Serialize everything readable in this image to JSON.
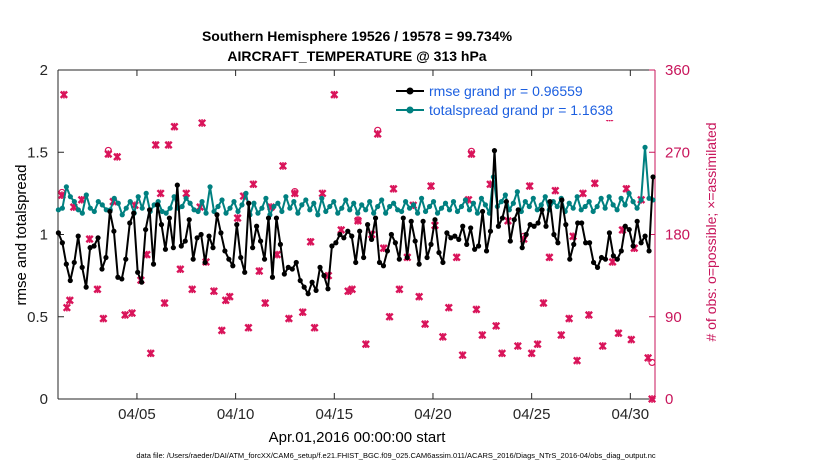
{
  "chart_data": {
    "type": "line",
    "title": "Southern Hemisphere 19526 / 19578 = 99.734%",
    "subtitle": "AIRCRAFT_TEMPERATURE @ 313 hPa",
    "xlabel": "Apr.01,2016 00:00:00 start",
    "ylabel": "rmse and totalspread",
    "ylabel_right": "# of obs: o=possible; ×=assimilated",
    "footnote": "data file: /Users/raeder/DAI/ATM_forcXX/CAM6_setup/f.e21.FHIST_BGC.f09_025.CAM6assim.011/ACARS_2016/Diags_NTrS_2016-04/obs_diag_output.nc",
    "xlim": [
      1.0,
      31.25
    ],
    "ylim": [
      0,
      2
    ],
    "ylim_right": [
      0,
      360
    ],
    "x_ticks": [
      5,
      10,
      15,
      20,
      25,
      30
    ],
    "x_tick_labels": [
      "04/05",
      "04/10",
      "04/15",
      "04/20",
      "04/25",
      "04/30"
    ],
    "y_ticks": [
      0,
      0.5,
      1,
      1.5,
      2
    ],
    "y_tick_labels": [
      "0",
      "0.5",
      "1",
      "1.5",
      "2"
    ],
    "y_right_ticks": [
      0,
      90,
      180,
      270,
      360
    ],
    "y_right_tick_labels": [
      "0",
      "90",
      "180",
      "270",
      "360"
    ],
    "legend_position": "top-right",
    "colors": {
      "rmse": "#000000",
      "spread": "#008080",
      "obs": "#d9145a",
      "axis": "#262626",
      "right_axis": "#c8155b",
      "legend_text": "#1c5fe0"
    },
    "series": [
      {
        "name": "rmse grand pr = 0.96559",
        "axis": "left",
        "values": [
          1.01,
          0.95,
          0.82,
          0.72,
          0.83,
          0.99,
          0.8,
          0.68,
          0.92,
          0.93,
          0.98,
          0.79,
          0.86,
          1.14,
          1.02,
          0.74,
          0.73,
          0.85,
          1.07,
          1.13,
          0.77,
          0.71,
          1.03,
          1.15,
          0.82,
          1.18,
          1.06,
          0.91,
          1.1,
          0.92,
          1.3,
          0.93,
          0.96,
          1.09,
          0.85,
          0.98,
          1.0,
          0.83,
          0.99,
          0.92,
          1.12,
          1.01,
          0.9,
          0.85,
          0.81,
          1.06,
          0.86,
          0.77,
          1.19,
          0.92,
          1.05,
          0.96,
          0.85,
          1.1,
          0.74,
          1.1,
          0.94,
          0.76,
          0.8,
          0.79,
          0.83,
          0.72,
          0.68,
          0.64,
          0.71,
          0.66,
          0.8,
          0.75,
          0.67,
          0.93,
          0.95,
          1.0,
          0.98,
          1.02,
          0.99,
          0.83,
          1.02,
          0.86,
          1.06,
          0.97,
          1.1,
          0.83,
          0.81,
          0.9,
          1.0,
          0.95,
          0.85,
          1.1,
          0.86,
          1.08,
          0.96,
          0.82,
          1.08,
          0.86,
          0.94,
          1.09,
          0.89,
          0.83,
          1.01,
          0.98,
          0.99,
          0.97,
          1.05,
          0.94,
          1.04,
          0.91,
          0.93,
          1.14,
          0.9,
          1.02,
          1.51,
          1.05,
          1.1,
          1.2,
          0.96,
          1.09,
          1.15,
          0.92,
          1.0,
          1.06,
          1.05,
          1.07,
          1.15,
          1.05,
          1.2,
          1.0,
          0.95,
          1.21,
          1.06,
          0.85,
          0.94,
          1.07,
          1.07,
          0.95,
          0.95,
          0.83,
          0.8,
          0.86,
          0.85,
          1.01,
          0.87,
          0.85,
          0.9,
          1.05,
          1.03,
          0.93,
          1.08,
          0.95,
          0.99,
          0.9,
          1.35
        ]
      },
      {
        "name": "totalspread grand pr = 1.1638",
        "axis": "left",
        "values": [
          1.15,
          1.16,
          1.29,
          1.23,
          1.2,
          1.15,
          1.13,
          1.24,
          1.16,
          1.14,
          1.2,
          1.18,
          1.15,
          1.15,
          1.22,
          1.19,
          1.12,
          1.16,
          1.2,
          1.13,
          1.23,
          1.16,
          1.25,
          1.14,
          1.18,
          1.2,
          1.14,
          1.13,
          1.16,
          1.23,
          1.16,
          1.17,
          1.22,
          1.19,
          1.15,
          1.14,
          1.2,
          1.13,
          1.29,
          1.14,
          1.17,
          1.21,
          1.13,
          1.16,
          1.2,
          1.14,
          1.18,
          1.25,
          1.12,
          1.19,
          1.13,
          1.16,
          1.22,
          1.12,
          1.17,
          1.19,
          1.14,
          1.23,
          1.16,
          1.2,
          1.13,
          1.18,
          1.21,
          1.15,
          1.19,
          1.12,
          1.22,
          1.14,
          1.17,
          1.2,
          1.13,
          1.16,
          1.21,
          1.15,
          1.19,
          1.13,
          1.18,
          1.15,
          1.2,
          1.13,
          1.17,
          1.21,
          1.13,
          1.17,
          1.19,
          1.15,
          1.14,
          1.2,
          1.16,
          1.18,
          1.13,
          1.22,
          1.14,
          1.17,
          1.2,
          1.13,
          1.16,
          1.19,
          1.15,
          1.2,
          1.14,
          1.17,
          1.21,
          1.15,
          1.19,
          1.13,
          1.22,
          1.18,
          1.13,
          1.35,
          1.17,
          1.2,
          1.24,
          1.15,
          1.19,
          1.26,
          1.14,
          1.2,
          1.17,
          1.22,
          1.15,
          1.18,
          1.23,
          1.15,
          1.2,
          1.17,
          1.22,
          1.14,
          1.19,
          1.16,
          1.23,
          1.15,
          1.17,
          1.2,
          1.14,
          1.17,
          1.22,
          1.16,
          1.23,
          1.18,
          1.15,
          1.22,
          1.18,
          1.25,
          1.2,
          1.16,
          1.21,
          1.53,
          1.22,
          1.21
        ]
      },
      {
        "name": "# of obs assimilated",
        "axis": "right",
        "points": [
          [
            1.2,
            223
          ],
          [
            1.3,
            333
          ],
          [
            1.45,
            100
          ],
          [
            1.6,
            108
          ],
          [
            1.8,
            210
          ],
          [
            2.2,
            218
          ],
          [
            2.6,
            175
          ],
          [
            3.0,
            120
          ],
          [
            3.3,
            88
          ],
          [
            3.55,
            268
          ],
          [
            3.8,
            216
          ],
          [
            4.0,
            265
          ],
          [
            4.4,
            92
          ],
          [
            4.75,
            94
          ],
          [
            4.9,
            212
          ],
          [
            5.2,
            130
          ],
          [
            5.5,
            158
          ],
          [
            5.7,
            50
          ],
          [
            5.95,
            278
          ],
          [
            6.2,
            225
          ],
          [
            6.4,
            105
          ],
          [
            6.6,
            278
          ],
          [
            6.9,
            298
          ],
          [
            7.2,
            142
          ],
          [
            7.5,
            225
          ],
          [
            7.8,
            120
          ],
          [
            8.2,
            210
          ],
          [
            8.3,
            302
          ],
          [
            8.5,
            150
          ],
          [
            8.9,
            118
          ],
          [
            9.3,
            75
          ],
          [
            9.5,
            108
          ],
          [
            9.7,
            112
          ],
          [
            10.1,
            198
          ],
          [
            10.4,
            222
          ],
          [
            10.65,
            78
          ],
          [
            10.9,
            235
          ],
          [
            11.2,
            140
          ],
          [
            11.5,
            105
          ],
          [
            11.8,
            210
          ],
          [
            12.1,
            158
          ],
          [
            12.4,
            255
          ],
          [
            12.7,
            88
          ],
          [
            13.0,
            225
          ],
          [
            13.4,
            95
          ],
          [
            13.8,
            172
          ],
          [
            14.0,
            78
          ],
          [
            14.4,
            225
          ],
          [
            14.7,
            135
          ],
          [
            15.0,
            333
          ],
          [
            15.35,
            185
          ],
          [
            15.7,
            118
          ],
          [
            15.9,
            120
          ],
          [
            16.2,
            195
          ],
          [
            16.6,
            60
          ],
          [
            16.9,
            180
          ],
          [
            17.2,
            290
          ],
          [
            17.5,
            165
          ],
          [
            17.8,
            90
          ],
          [
            18.0,
            230
          ],
          [
            18.3,
            120
          ],
          [
            18.7,
            155
          ],
          [
            19.0,
            212
          ],
          [
            19.3,
            112
          ],
          [
            19.6,
            82
          ],
          [
            19.9,
            233
          ],
          [
            20.1,
            190
          ],
          [
            20.5,
            68
          ],
          [
            20.8,
            100
          ],
          [
            21.2,
            155
          ],
          [
            21.5,
            48
          ],
          [
            21.8,
            218
          ],
          [
            21.95,
            268
          ],
          [
            22.2,
            98
          ],
          [
            22.5,
            70
          ],
          [
            22.9,
            235
          ],
          [
            23.2,
            80
          ],
          [
            23.5,
            50
          ],
          [
            23.8,
            195
          ],
          [
            24.3,
            58
          ],
          [
            24.6,
            175
          ],
          [
            24.9,
            233
          ],
          [
            25.0,
            50
          ],
          [
            25.3,
            60
          ],
          [
            25.6,
            105
          ],
          [
            25.9,
            155
          ],
          [
            26.2,
            228
          ],
          [
            26.5,
            70
          ],
          [
            26.9,
            88
          ],
          [
            27.1,
            178
          ],
          [
            27.3,
            42
          ],
          [
            27.6,
            225
          ],
          [
            27.9,
            92
          ],
          [
            28.2,
            236
          ],
          [
            28.6,
            58
          ],
          [
            28.95,
            308
          ],
          [
            29.1,
            150
          ],
          [
            29.4,
            72
          ],
          [
            29.6,
            185
          ],
          [
            29.8,
            230
          ],
          [
            30.05,
            65
          ],
          [
            30.2,
            165
          ],
          [
            30.55,
            218
          ],
          [
            30.9,
            45
          ],
          [
            31.1,
            0
          ]
        ]
      },
      {
        "name": "# of obs possible",
        "axis": "right",
        "points": [
          [
            1.2,
            226
          ],
          [
            3.55,
            272
          ],
          [
            13.0,
            227
          ],
          [
            16.2,
            196
          ],
          [
            17.2,
            294
          ],
          [
            21.95,
            271
          ],
          [
            24.6,
            178
          ],
          [
            28.95,
            311
          ],
          [
            31.1,
            40
          ]
        ]
      }
    ],
    "legend": [
      "rmse grand pr = 0.96559",
      "totalspread grand pr = 1.1638"
    ]
  }
}
